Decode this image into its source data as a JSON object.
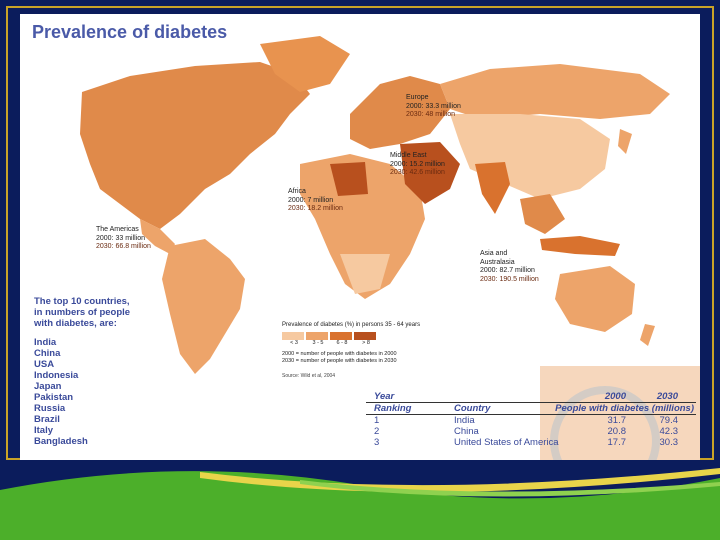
{
  "title": "Prevalence of diabetes",
  "regions": {
    "europe": {
      "name": "Europe",
      "y2000": "2000: 33.3 million",
      "y2030": "2030: 48 million"
    },
    "middle_east": {
      "name": "Middle East",
      "y2000": "2000: 15.2 million",
      "y2030": "2030: 42.6 million"
    },
    "africa": {
      "name": "Africa",
      "y2000": "2000: 7 million",
      "y2030": "2030: 18.2 million"
    },
    "americas": {
      "name": "The Americas",
      "y2000": "2000: 33 million",
      "y2030": "2030: 66.8 million"
    },
    "asia": {
      "name1": "Asia and",
      "name2": "Australasia",
      "y2000": "2000: 82.7 million",
      "y2030": "2030: 190.5 million"
    }
  },
  "top10": {
    "heading_lines": [
      "The top 10 countries,",
      "in numbers of people",
      "with diabetes, are:"
    ],
    "countries": [
      "India",
      "China",
      "USA",
      "Indonesia",
      "Japan",
      "Pakistan",
      "Russia",
      "Brazil",
      "Italy",
      "Bangladesh"
    ]
  },
  "legend": {
    "title": "Prevalence of diabetes (%) in persons 35 - 64 years",
    "categories": [
      "< 3",
      "3 - 5",
      "6 - 8",
      "> 8"
    ],
    "colors": [
      "#f6c9a0",
      "#eda46a",
      "#d9722e",
      "#b8501e"
    ],
    "note1": "2000 = number of people with diabetes in 2000",
    "note2": "2030 = number of people with diabetes in 2030",
    "source": "Source: Wild et al, 2004"
  },
  "table": {
    "header1": {
      "c1": "Year",
      "c2": "",
      "c3": "2000",
      "c4": "2030"
    },
    "header2": {
      "c1": "Ranking",
      "c2": "Country",
      "c3": "People with diabetes (millions)"
    },
    "rows": [
      {
        "rank": "1",
        "country": "India",
        "v2000": "31.7",
        "v2030": "79.4"
      },
      {
        "rank": "2",
        "country": "China",
        "v2000": "20.8",
        "v2030": "42.3"
      },
      {
        "rank": "3",
        "country": "United States of America",
        "v2000": "17.7",
        "v2030": "30.3"
      }
    ]
  },
  "colors": {
    "background": "#0b1c5c",
    "frame": "#c9a227",
    "title": "#4a5aa8",
    "wave_green": "#4caf2a",
    "wave_yellow": "#e8d44a"
  }
}
